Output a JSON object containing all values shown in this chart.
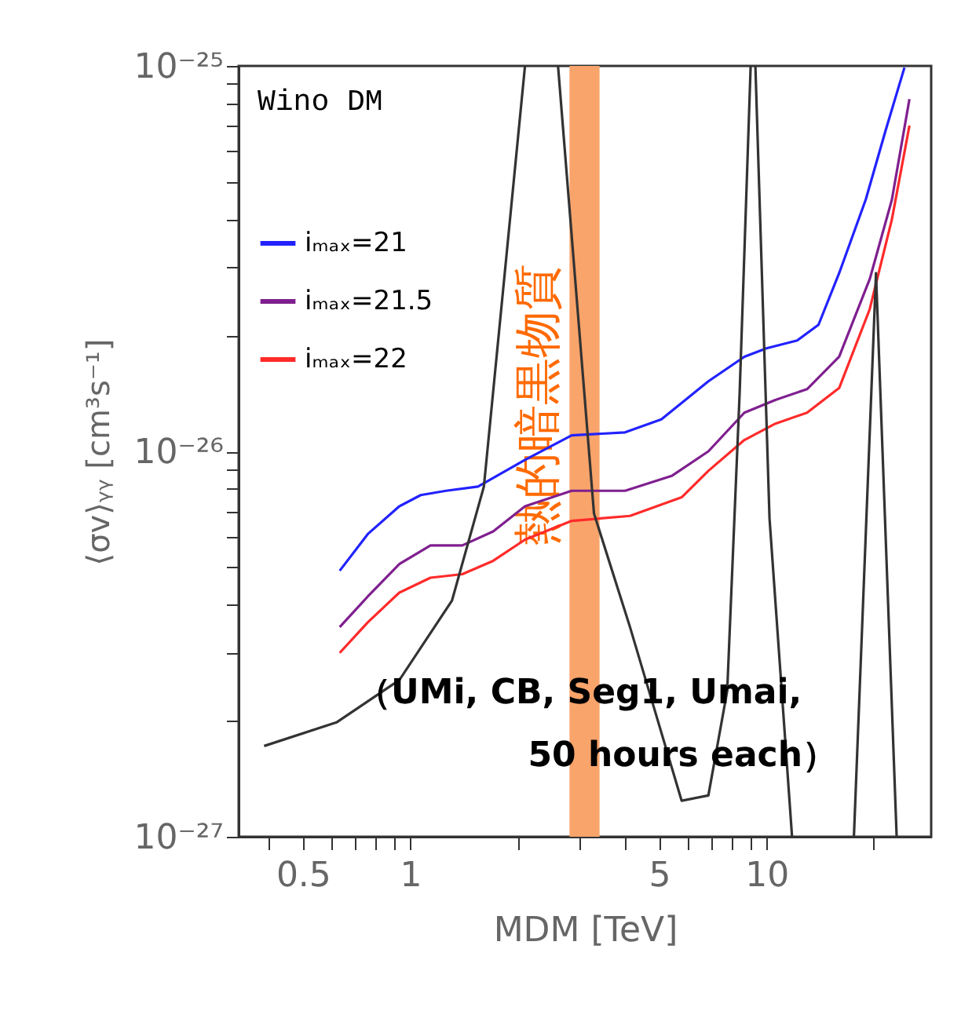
{
  "chart_data": {
    "type": "line",
    "xlabel": "MDM [TeV]",
    "ylabel": "⟨σv⟩ᵧᵧ [cm³s⁻¹]",
    "log": "xy",
    "grid": false,
    "legend": "top left",
    "marker": "none",
    "line_style": "solid",
    "xlim": [
      0.33,
      29
    ],
    "ylim": [
      1e-27,
      1e-25
    ],
    "xticks": [
      {
        "value": 0.4,
        "label": null
      },
      0.5,
      {
        "value": 0.6,
        "label": null
      },
      {
        "value": 0.7,
        "label": null
      },
      {
        "value": 0.8,
        "label": null
      },
      {
        "value": 0.9,
        "label": null
      },
      1,
      {
        "value": 2,
        "label": null
      },
      {
        "value": 3,
        "label": null
      },
      {
        "value": 4,
        "label": null
      },
      5,
      {
        "value": 6,
        "label": null
      },
      {
        "value": 7,
        "label": null
      },
      {
        "value": 8,
        "label": null
      },
      {
        "value": 9,
        "label": null
      },
      10,
      {
        "value": 20,
        "label": null
      }
    ],
    "yticks": [
      {
        "value": 1e-27,
        "label": "10⁻²⁷"
      },
      {
        "value": 2e-27,
        "label": null
      },
      {
        "value": 3e-27,
        "label": null
      },
      {
        "value": 4e-27,
        "label": null
      },
      {
        "value": 5e-27,
        "label": null
      },
      {
        "value": 6e-27,
        "label": null
      },
      {
        "value": 7e-27,
        "label": null
      },
      {
        "value": 8e-27,
        "label": null
      },
      {
        "value": 9e-27,
        "label": null
      },
      {
        "value": 1e-26,
        "label": "10⁻²⁶"
      },
      {
        "value": 2e-26,
        "label": null
      },
      {
        "value": 3e-26,
        "label": null
      },
      {
        "value": 4e-26,
        "label": null
      },
      {
        "value": 5e-26,
        "label": null
      },
      {
        "value": 6e-26,
        "label": null
      },
      {
        "value": 7e-26,
        "label": null
      },
      {
        "value": 8e-26,
        "label": null
      },
      {
        "value": 9e-26,
        "label": null
      },
      {
        "value": 1e-25,
        "label": "10⁻²⁵"
      }
    ],
    "series": [
      {
        "name": "iₘₐₓ=21",
        "color": "#2222ff",
        "x": [
          0.634,
          0.76,
          0.932,
          1.07,
          1.26,
          1.55,
          2.1,
          2.84,
          4.01,
          5.07,
          6.87,
          8.67,
          10.0,
          12.2,
          14.0,
          16.0,
          19.0,
          21.6,
          24.4
        ],
        "values": [
          4.9e-27,
          6.1e-27,
          7.2e-27,
          7.7e-27,
          7.9e-27,
          8.1e-27,
          9.5e-27,
          1.1e-26,
          1.12e-26,
          1.21e-26,
          1.52e-26,
          1.76e-26,
          1.85e-26,
          1.94e-26,
          2.13e-26,
          2.9e-26,
          4.5e-26,
          6.8e-26,
          9.9e-26
        ]
      },
      {
        "name": "iₘₐₓ=21.5",
        "color": "#7f1f8f",
        "x": [
          0.634,
          0.76,
          0.932,
          1.14,
          1.4,
          1.71,
          2.1,
          2.84,
          4.01,
          5.44,
          6.87,
          8.67,
          10.6,
          13.0,
          16.0,
          19.5,
          22.5,
          25.2
        ],
        "values": [
          3.5e-27,
          4.2e-27,
          5.1e-27,
          5.7e-27,
          5.7e-27,
          6.2e-27,
          7.2e-27,
          7.9e-27,
          7.9e-27,
          8.65e-27,
          1e-26,
          1.26e-26,
          1.36e-26,
          1.45e-26,
          1.76e-26,
          2.8e-26,
          4.5e-26,
          8.2e-26
        ]
      },
      {
        "name": "iₘₐₓ=22",
        "color": "#ff2a2a",
        "x": [
          0.634,
          0.76,
          0.932,
          1.14,
          1.4,
          1.71,
          2.1,
          2.84,
          4.14,
          5.78,
          6.87,
          8.67,
          10.6,
          13.0,
          16.0,
          19.5,
          22.5,
          25.2
        ],
        "values": [
          3e-27,
          3.6e-27,
          4.3e-27,
          4.7e-27,
          4.8e-27,
          5.2e-27,
          5.9e-27,
          6.6e-27,
          6.8e-27,
          7.6e-27,
          8.9e-27,
          1.07e-26,
          1.18e-26,
          1.26e-26,
          1.46e-26,
          2.34e-26,
          4e-26,
          7e-26
        ]
      },
      {
        "color": "#333333",
        "x": [
          0.389,
          0.621,
          0.932,
          1.31,
          1.61,
          2.1,
          2.3,
          2.6,
          3.28,
          4.14,
          5.78,
          6.87,
          7.76,
          8.41,
          9.03,
          9.1,
          9.31,
          10.2,
          11.8,
          14.0,
          17.6,
          20.3,
          23.2
        ],
        "values": [
          1.72e-27,
          1.98e-27,
          2.55e-27,
          4.1e-27,
          8.1e-27,
          1e-25,
          null,
          1e-25,
          6.9e-27,
          3.5e-27,
          1.24e-27,
          1.28e-27,
          2.39e-27,
          1.42e-26,
          1e-25,
          null,
          1e-25,
          6.7e-27,
          1e-27,
          null,
          1e-27,
          2.9e-26,
          1e-27
        ]
      }
    ],
    "bands": [
      {
        "axis": "x",
        "from": 2.8,
        "to": 3.4,
        "label": "熱的暗黒物質",
        "color": "#f9a46b"
      }
    ],
    "annotations": [
      "Wino DM",
      "（UMi, CB, Seg1, Umai,",
      "50 hours each）"
    ]
  }
}
